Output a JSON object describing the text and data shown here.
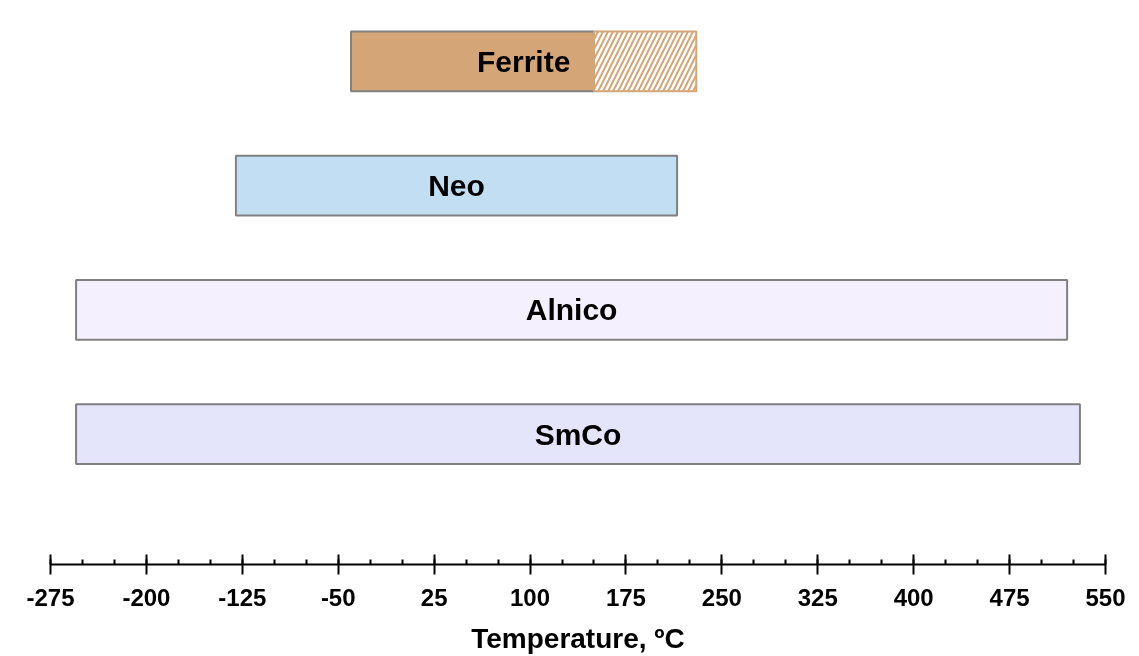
{
  "chart_data": {
    "type": "bar",
    "orientation": "horizontal",
    "xlabel": "Temperature, ºC",
    "categories": [
      "Ferrite",
      "Neo",
      "Alnico",
      "SmCo"
    ],
    "series": [
      {
        "colors": [
          "#d4a577",
          "#c2def2",
          "#f5f0fd",
          "#e4e4fb"
        ],
        "base": [
          -40,
          -130,
          -255,
          -255
        ],
        "values": [
          190,
          345,
          775,
          785
        ]
      },
      {
        "color": "#d4a577",
        "base": [
          150,
          null,
          null,
          null
        ],
        "values": [
          80,
          null,
          null,
          null
        ]
      }
    ],
    "xlim": [
      -275,
      550
    ],
    "xticks": [
      -275,
      -200,
      -125,
      -50,
      25,
      100,
      175,
      250,
      325,
      400,
      475,
      550
    ],
    "grid": false
  }
}
